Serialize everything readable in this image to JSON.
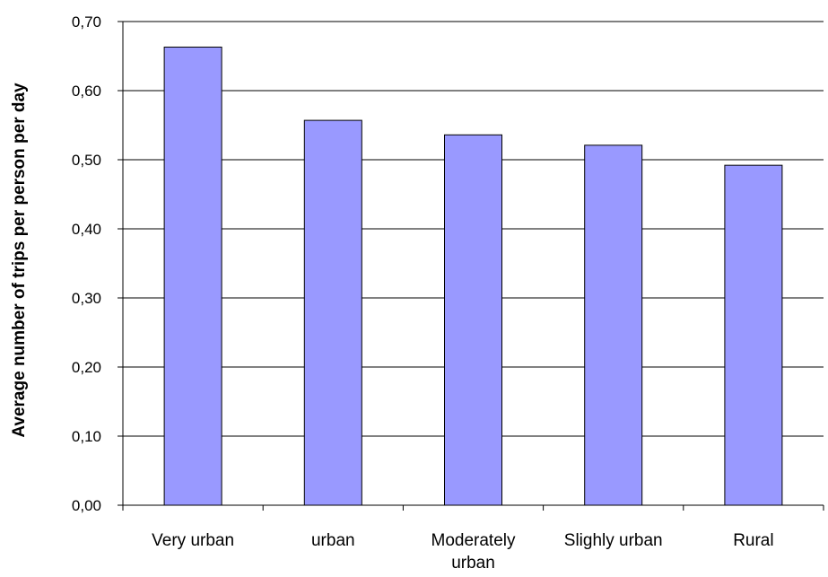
{
  "chart_data": {
    "type": "bar",
    "categories": [
      [
        "Very urban"
      ],
      [
        "urban"
      ],
      [
        "Moderately",
        "urban"
      ],
      [
        "Slighly urban"
      ],
      [
        "Rural"
      ]
    ],
    "values": [
      0.663,
      0.557,
      0.536,
      0.521,
      0.492
    ],
    "title": "",
    "xlabel": "",
    "ylabel": "Average number of trips per person per day",
    "ylim": [
      0,
      0.7
    ],
    "yticks": [
      "0,00",
      "0,10",
      "0,20",
      "0,30",
      "0,40",
      "0,50",
      "0,60",
      "0,70"
    ],
    "grid": true,
    "legend": "none",
    "bar_color": "#9999ff"
  }
}
